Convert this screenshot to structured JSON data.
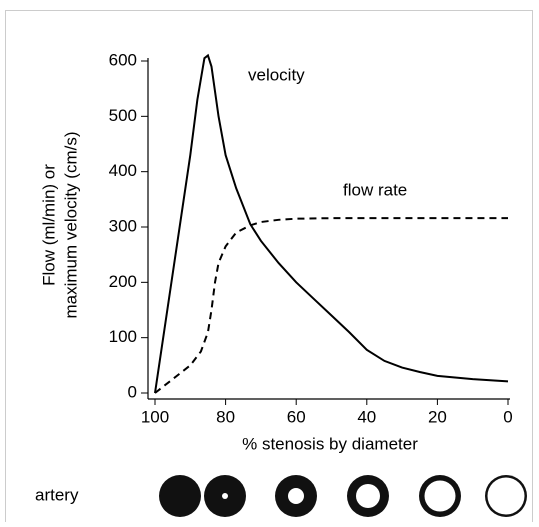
{
  "chart_data": {
    "type": "line",
    "xlabel": "% stenosis by diameter",
    "ylabel": [
      "Flow (ml/min) or",
      "maximum velocity (cm/s)"
    ],
    "xlim": [
      100,
      0
    ],
    "xticks": [
      100,
      80,
      60,
      40,
      20,
      0
    ],
    "ylim": [
      0,
      600
    ],
    "yticks": [
      0,
      100,
      200,
      300,
      400,
      500,
      600
    ],
    "grid": false,
    "series": [
      {
        "name": "velocity",
        "color": "#000000",
        "dashed": false,
        "x": [
          100,
          95,
          90,
          88,
          86,
          85,
          84,
          82,
          80,
          77,
          73,
          70,
          65,
          60,
          55,
          50,
          45,
          40,
          35,
          30,
          25,
          20,
          10,
          0
        ],
        "values": [
          0,
          215,
          430,
          530,
          605,
          610,
          590,
          500,
          430,
          370,
          305,
          275,
          235,
          200,
          170,
          140,
          110,
          78,
          58,
          46,
          38,
          31,
          25,
          21
        ]
      },
      {
        "name": "flow rate",
        "color": "#000000",
        "dashed": true,
        "x": [
          100,
          95,
          90,
          87,
          85,
          84,
          83,
          82,
          80,
          77,
          73,
          70,
          65,
          60,
          50,
          40,
          0
        ],
        "values": [
          0,
          25,
          50,
          75,
          110,
          150,
          200,
          235,
          265,
          290,
          303,
          309,
          313,
          315,
          316,
          316,
          316
        ]
      }
    ]
  },
  "artery_row": {
    "label": "artery"
  }
}
